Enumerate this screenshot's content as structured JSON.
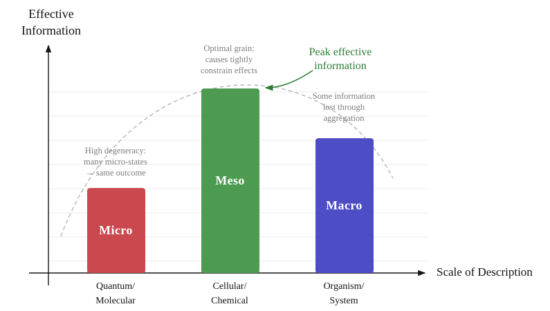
{
  "chart_data": {
    "type": "bar",
    "title": "",
    "xlabel": "Scale of Description",
    "ylabel": "Effective Information",
    "ylabel_lines": [
      "Effective",
      "Information"
    ],
    "ylim": [
      0,
      1.15
    ],
    "grid": "horizontal-faint",
    "grid_color": "#ebebeb",
    "axis_color": "#151515",
    "categories": [
      "Quantum/ Molecular",
      "Cellular/ Chemical",
      "Organism/ System"
    ],
    "bars": [
      {
        "label": "Micro",
        "value": 0.46,
        "color": "#c9494e",
        "category_lines": [
          "Quantum/",
          "Molecular"
        ]
      },
      {
        "label": "Meso",
        "value": 1.0,
        "color": "#4d9b50",
        "category_lines": [
          "Cellular/",
          "Chemical"
        ]
      },
      {
        "label": "Macro",
        "value": 0.73,
        "color": "#4d4dc5",
        "category_lines": [
          "Organism/",
          "System"
        ]
      }
    ],
    "trend": {
      "type": "dashed-bell-curve",
      "color": "#b5b5b5",
      "description": "Dashed gray curve rising from lower left, peaking just above the Meso bar, falling toward the right of the Macro bar"
    },
    "annotations": [
      {
        "id": "high-degeneracy",
        "text_lines": [
          "High degeneracy:",
          "many micro-states",
          "→ same outcome"
        ],
        "color": "#7d7d7d"
      },
      {
        "id": "optimal-grain",
        "text_lines": [
          "Optimal grain:",
          "causes tightly",
          "constrain effects"
        ],
        "color": "#7d7d7d"
      },
      {
        "id": "aggregation-loss",
        "text_lines": [
          "Some information",
          "lost through",
          "aggregation"
        ],
        "color": "#7d7d7d"
      },
      {
        "id": "peak-effective-information",
        "text_lines": [
          "Peak effective",
          "information"
        ],
        "color": "#2a7d33",
        "arrow": true
      }
    ]
  }
}
